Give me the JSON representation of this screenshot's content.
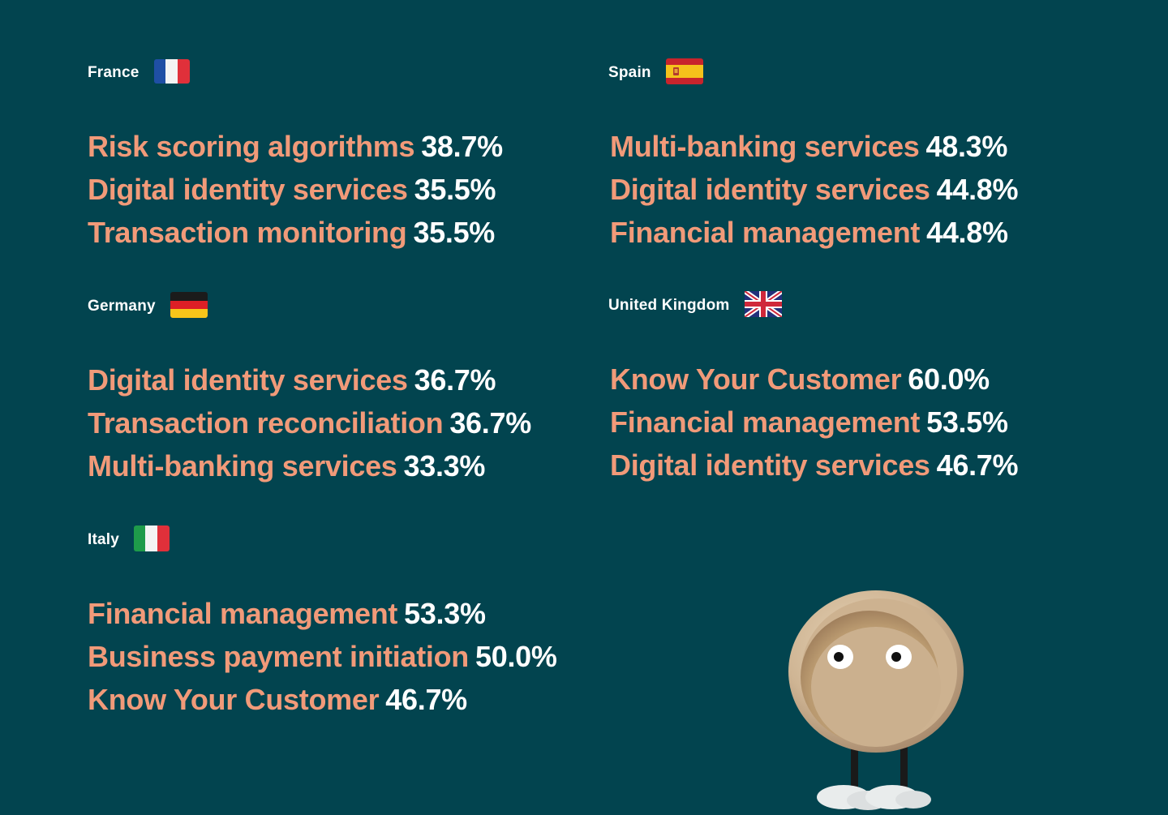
{
  "countries": [
    {
      "name": "France",
      "flag_icon": "france-flag-icon",
      "items": [
        {
          "label": "Risk scoring algorithms",
          "value": "38.7%"
        },
        {
          "label": "Digital identity services",
          "value": "35.5%"
        },
        {
          "label": "Transaction monitoring",
          "value": "35.5%"
        }
      ]
    },
    {
      "name": "Spain",
      "flag_icon": "spain-flag-icon",
      "items": [
        {
          "label": "Multi-banking services",
          "value": "48.3%"
        },
        {
          "label": "Digital identity services",
          "value": "44.8%"
        },
        {
          "label": "Financial management",
          "value": "44.8%"
        }
      ]
    },
    {
      "name": "Germany",
      "flag_icon": "germany-flag-icon",
      "items": [
        {
          "label": "Digital identity services",
          "value": "36.7%"
        },
        {
          "label": "Transaction reconciliation",
          "value": "36.7%"
        },
        {
          "label": "Multi-banking services",
          "value": "33.3%"
        }
      ]
    },
    {
      "name": "United Kingdom",
      "flag_icon": "uk-flag-icon",
      "items": [
        {
          "label": "Know Your Customer",
          "value": "60.0%"
        },
        {
          "label": "Financial management",
          "value": "53.5%"
        },
        {
          "label": "Digital identity services",
          "value": "46.7%"
        }
      ]
    },
    {
      "name": "Italy",
      "flag_icon": "italy-flag-icon",
      "items": [
        {
          "label": "Financial management",
          "value": "53.3%"
        },
        {
          "label": "Business payment initiation",
          "value": "50.0%"
        },
        {
          "label": "Know Your Customer",
          "value": "46.7%"
        }
      ]
    }
  ],
  "colors": {
    "background": "#02444f",
    "label": "#f19a79",
    "value": "#ffffff"
  },
  "illustration": "coin-character-icon"
}
